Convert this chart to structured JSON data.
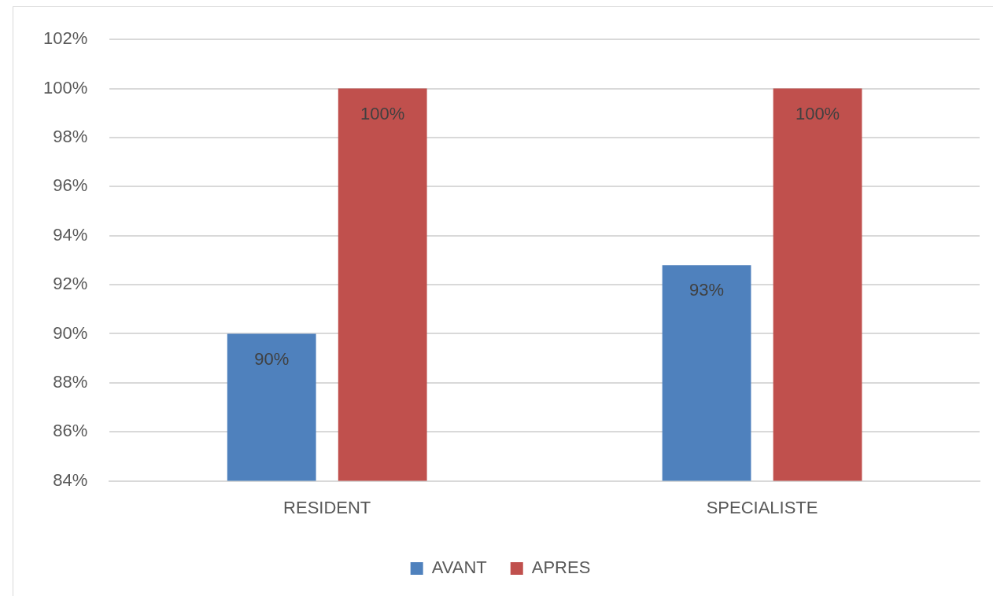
{
  "chart_data": {
    "type": "bar",
    "categories": [
      "RESIDENT",
      "SPECIALISTE"
    ],
    "series": [
      {
        "name": "AVANT",
        "color": "#4f81bd",
        "values": [
          90,
          92.8
        ],
        "value_labels": [
          "90%",
          "93%"
        ]
      },
      {
        "name": "APRES",
        "color": "#c0504d",
        "values": [
          100,
          100
        ],
        "value_labels": [
          "100%",
          "100%"
        ]
      }
    ],
    "ylim": [
      84,
      102
    ],
    "yticks": [
      {
        "value": 84,
        "label": "84%"
      },
      {
        "value": 86,
        "label": "86%"
      },
      {
        "value": 88,
        "label": "88%"
      },
      {
        "value": 90,
        "label": "90%"
      },
      {
        "value": 92,
        "label": "92%"
      },
      {
        "value": 94,
        "label": "94%"
      },
      {
        "value": 96,
        "label": "96%"
      },
      {
        "value": 98,
        "label": "98%"
      },
      {
        "value": 100,
        "label": "100%"
      },
      {
        "value": 102,
        "label": "102%"
      }
    ],
    "grid": "y",
    "legend": "bottom"
  }
}
